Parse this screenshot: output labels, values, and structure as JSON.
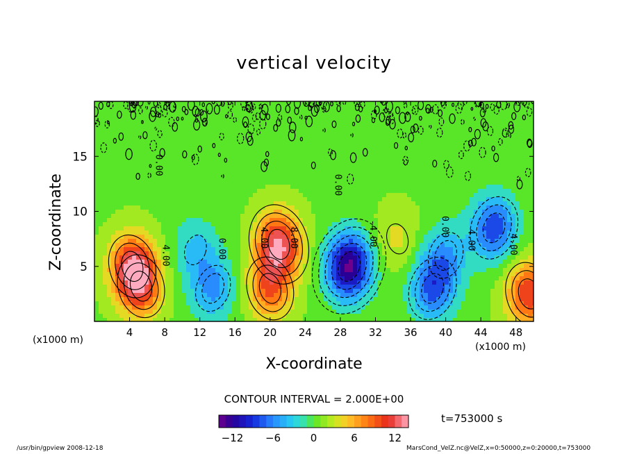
{
  "chart_data": {
    "type": "heatmap",
    "title": "vertical velocity",
    "xlabel": "X-coordinate",
    "ylabel": "Z-coordinate",
    "x_unit_label": "(x1000 m)",
    "xlim": [
      0,
      50
    ],
    "ylim": [
      0,
      20
    ],
    "x_ticks": [
      4,
      8,
      12,
      16,
      20,
      24,
      28,
      32,
      36,
      40,
      44,
      48
    ],
    "y_ticks": [
      5,
      10,
      15
    ],
    "contour_labels": [
      {
        "x": 7.8,
        "z": 6.0,
        "text": "4.00"
      },
      {
        "x": 7.0,
        "z": 14.2,
        "text": "0.00"
      },
      {
        "x": 14.2,
        "z": 6.6,
        "text": "0.00"
      },
      {
        "x": 19.0,
        "z": 7.6,
        "text": "4.00"
      },
      {
        "x": 22.4,
        "z": 7.6,
        "text": "8.00"
      },
      {
        "x": 27.4,
        "z": 12.4,
        "text": "0.00"
      },
      {
        "x": 31.4,
        "z": 8.0,
        "text": "-4.00"
      },
      {
        "x": 39.6,
        "z": 8.6,
        "text": "0.00"
      },
      {
        "x": 42.6,
        "z": 7.4,
        "text": "4.00"
      },
      {
        "x": 47.4,
        "z": 7.0,
        "text": "4.00"
      }
    ],
    "features": [
      {
        "x": 4.3,
        "z": 5.0,
        "peak": 10
      },
      {
        "x": 5.3,
        "z": 3.2,
        "peak": 8
      },
      {
        "x": 13.5,
        "z": 3.0,
        "peak": -6
      },
      {
        "x": 11.5,
        "z": 6.5,
        "peak": -4
      },
      {
        "x": 21.0,
        "z": 7.0,
        "peak": 12
      },
      {
        "x": 20.0,
        "z": 3.0,
        "peak": 8
      },
      {
        "x": 29.0,
        "z": 5.0,
        "peak": -14
      },
      {
        "x": 38.5,
        "z": 3.0,
        "peak": -8
      },
      {
        "x": 40.0,
        "z": 6.0,
        "peak": -5
      },
      {
        "x": 45.5,
        "z": 8.5,
        "peak": -9
      },
      {
        "x": 49.5,
        "z": 2.5,
        "peak": 10
      },
      {
        "x": 34.5,
        "z": 7.5,
        "peak": 3
      }
    ],
    "colorbar": {
      "min": -14,
      "max": 14,
      "ticks": [
        "−12",
        "−6",
        "0",
        "6",
        "12"
      ],
      "tick_values": [
        -12,
        -6,
        0,
        6,
        12
      ]
    },
    "contour_interval_text": "CONTOUR INTERVAL = 2.000E+00",
    "time_text": "t=753000 s",
    "grid": false
  },
  "footer": {
    "left": "/usr/bin/gpview  2008-12-18",
    "right": "MarsCond_VelZ.nc@VelZ,x=0:50000,z=0:20000,t=753000"
  }
}
